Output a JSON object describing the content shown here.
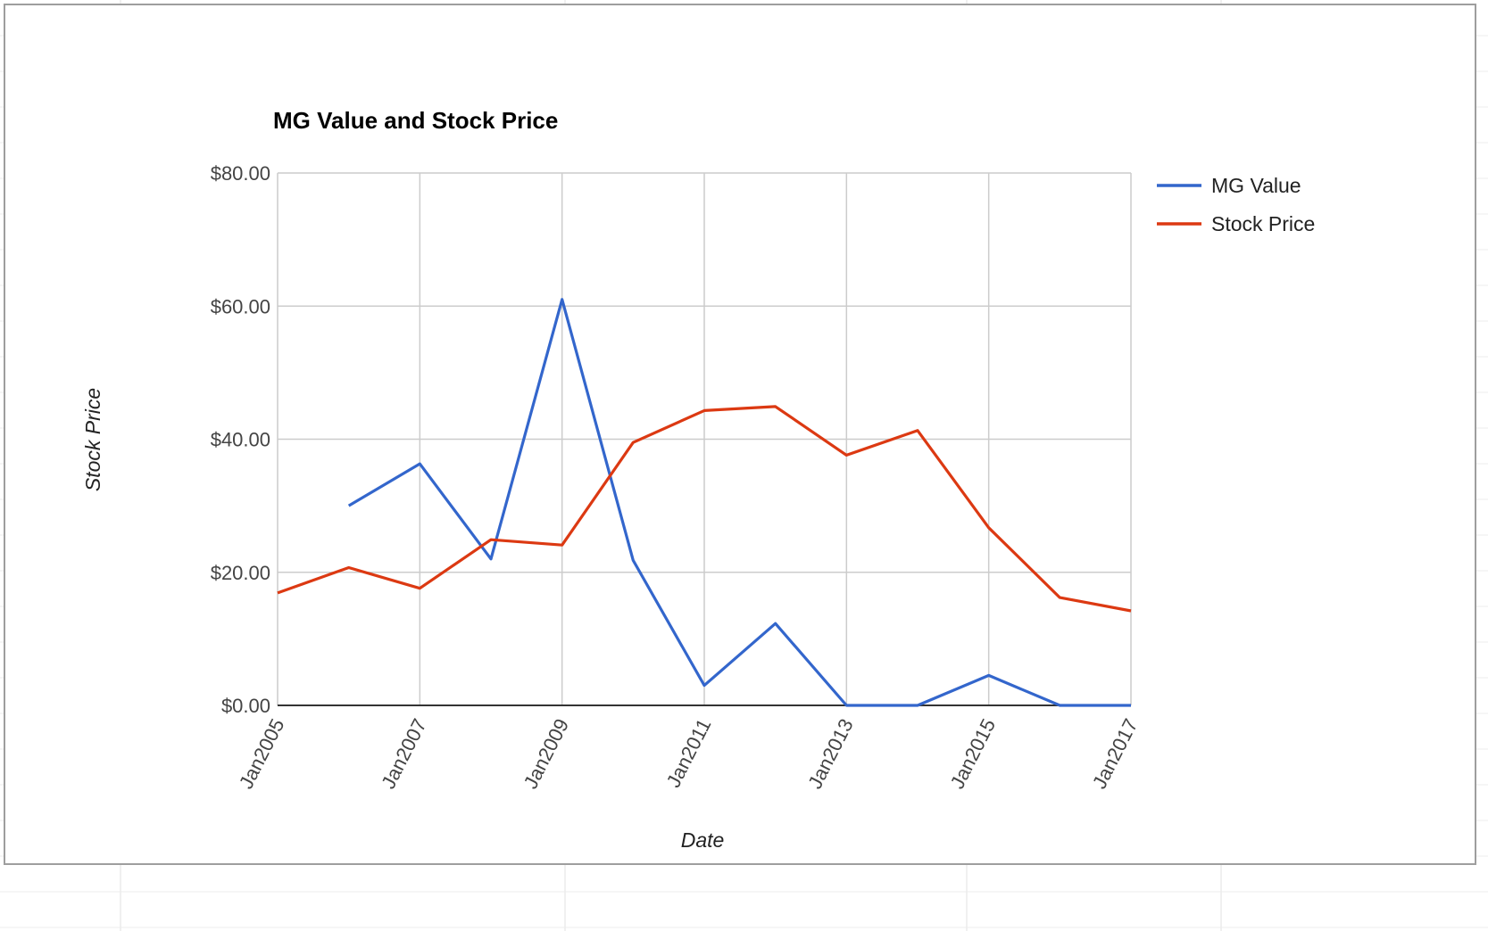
{
  "chart_data": {
    "type": "line",
    "title": "MG Value and Stock Price",
    "xlabel": "Date",
    "ylabel": "Stock Price",
    "x": [
      2005,
      2006,
      2007,
      2008,
      2009,
      2010,
      2011,
      2012,
      2013,
      2014,
      2015,
      2016,
      2017
    ],
    "x_tick_values": [
      2005,
      2007,
      2009,
      2011,
      2013,
      2015,
      2017
    ],
    "x_tick_labels": [
      "Jan2005",
      "Jan2007",
      "Jan2009",
      "Jan2011",
      "Jan2013",
      "Jan2015",
      "Jan2017"
    ],
    "y_tick_values": [
      0,
      20,
      40,
      60,
      80
    ],
    "y_tick_labels": [
      "$0.00",
      "$20.00",
      "$40.00",
      "$60.00",
      "$80.00"
    ],
    "ylim": [
      0,
      80
    ],
    "xlim": [
      2005,
      2017
    ],
    "grid": true,
    "legend": "right",
    "series": [
      {
        "name": "MG Value",
        "color": "#3366cc",
        "values": [
          null,
          30.0,
          36.3,
          22.0,
          61.0,
          21.8,
          3.0,
          12.3,
          0.0,
          0.0,
          4.5,
          0.0,
          0.0
        ]
      },
      {
        "name": "Stock Price",
        "color": "#dc3912",
        "values": [
          16.9,
          20.7,
          17.6,
          24.9,
          24.1,
          39.5,
          44.3,
          44.9,
          37.6,
          41.3,
          26.7,
          16.2,
          14.2
        ]
      }
    ]
  }
}
